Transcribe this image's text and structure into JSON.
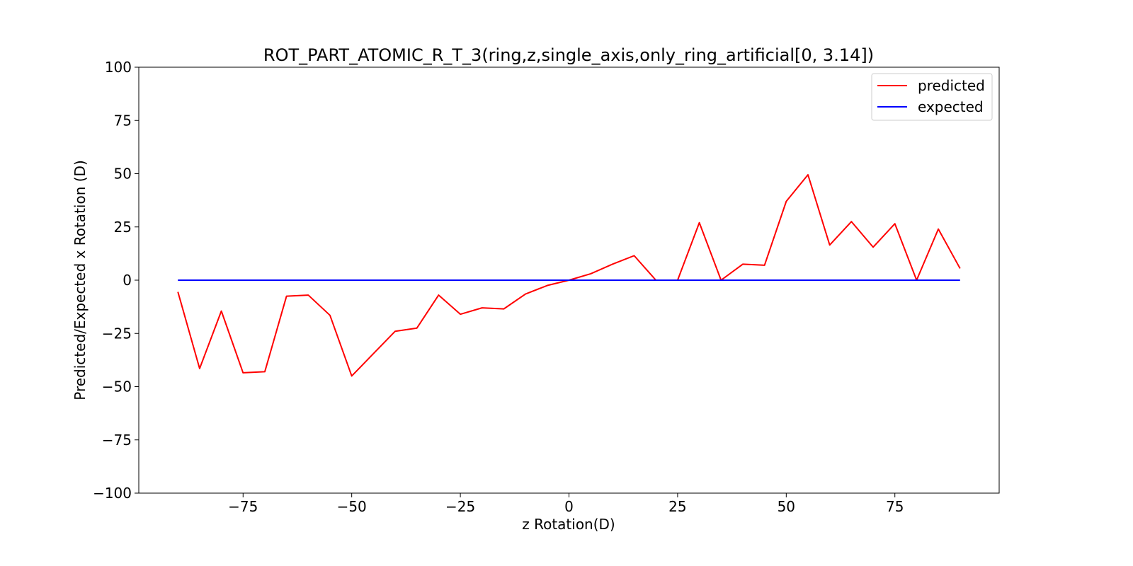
{
  "chart_data": {
    "type": "line",
    "title": "ROT_PART_ATOMIC_R_T_3(ring,z,single_axis,only_ring_artificial[0, 3.14])",
    "xlabel": "z Rotation(D)",
    "ylabel": "Predicted/Expected x Rotation (D)",
    "xlim": [
      -99,
      99
    ],
    "ylim": [
      -100,
      100
    ],
    "xticks": [
      -75,
      -50,
      -25,
      0,
      25,
      50,
      75
    ],
    "yticks": [
      -100,
      -75,
      -50,
      -25,
      0,
      25,
      50,
      75,
      100
    ],
    "grid": false,
    "legend": "top-right",
    "x": [
      -90,
      -85,
      -80,
      -75,
      -70,
      -65,
      -60,
      -55,
      -50,
      -45,
      -40,
      -35,
      -30,
      -25,
      -20,
      -15,
      -10,
      -5,
      0,
      5,
      10,
      15,
      20,
      25,
      30,
      35,
      40,
      45,
      50,
      55,
      60,
      65,
      70,
      75,
      80,
      85,
      90
    ],
    "series": [
      {
        "name": "predicted",
        "color": "#ff0000",
        "values": [
          -5.5,
          -41.5,
          -14.5,
          -43.5,
          -43,
          -7.5,
          -7,
          -16.5,
          -45,
          -34.5,
          -24,
          -22.5,
          -7,
          -16,
          -13,
          -13.5,
          -6.5,
          -2.5,
          0,
          3,
          7.5,
          11.5,
          0,
          0,
          27,
          0,
          7.5,
          7,
          37,
          49.5,
          16.5,
          27.5,
          15.5,
          26.5,
          0,
          24,
          5.5
        ]
      },
      {
        "name": "expected",
        "color": "#0000ff",
        "values": [
          0,
          0,
          0,
          0,
          0,
          0,
          0,
          0,
          0,
          0,
          0,
          0,
          0,
          0,
          0,
          0,
          0,
          0,
          0,
          0,
          0,
          0,
          0,
          0,
          0,
          0,
          0,
          0,
          0,
          0,
          0,
          0,
          0,
          0,
          0,
          0,
          0
        ]
      }
    ]
  }
}
